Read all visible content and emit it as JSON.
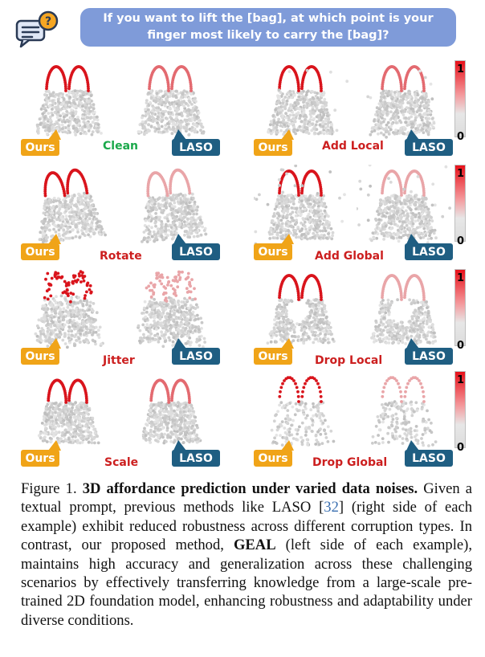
{
  "prompt": {
    "text": "If you want to lift the [bag], at which point is your finger most likely to carry the [bag]?"
  },
  "icons": {
    "prompt_icon": "chat-question-icon"
  },
  "labels": {
    "ours": "Ours",
    "laso": "LASO"
  },
  "colorbar": {
    "max": "1",
    "min": "0",
    "top_color": "#e8111a",
    "bottom_color": "#dcdcdc"
  },
  "conditions": [
    {
      "name": "Clean",
      "color": "#1aa84a"
    },
    {
      "name": "Add Local",
      "color": "#cc1f1f"
    },
    {
      "name": "Rotate",
      "color": "#cc1f1f"
    },
    {
      "name": "Add Global",
      "color": "#cc1f1f"
    },
    {
      "name": "Jitter",
      "color": "#cc1f1f"
    },
    {
      "name": "Drop Local",
      "color": "#cc1f1f"
    },
    {
      "name": "Scale",
      "color": "#cc1f1f"
    },
    {
      "name": "Drop Global",
      "color": "#cc1f1f"
    }
  ],
  "caption": {
    "figure": "Figure 1.",
    "title": "3D affordance prediction under varied data noises.",
    "part1": "Given a textual prompt, previous methods like LASO [",
    "ref": "32",
    "part2": "] (right side of each example) exhibit reduced robustness across different corruption types. In contrast, our proposed method, ",
    "method": "GEAL",
    "part3": " (left side of each example), maintains high accuracy and generalization across these challenging scenarios by effectively transferring knowledge from a large-scale pre-trained 2D foundation model, enhancing robustness and adaptability under diverse conditions."
  }
}
